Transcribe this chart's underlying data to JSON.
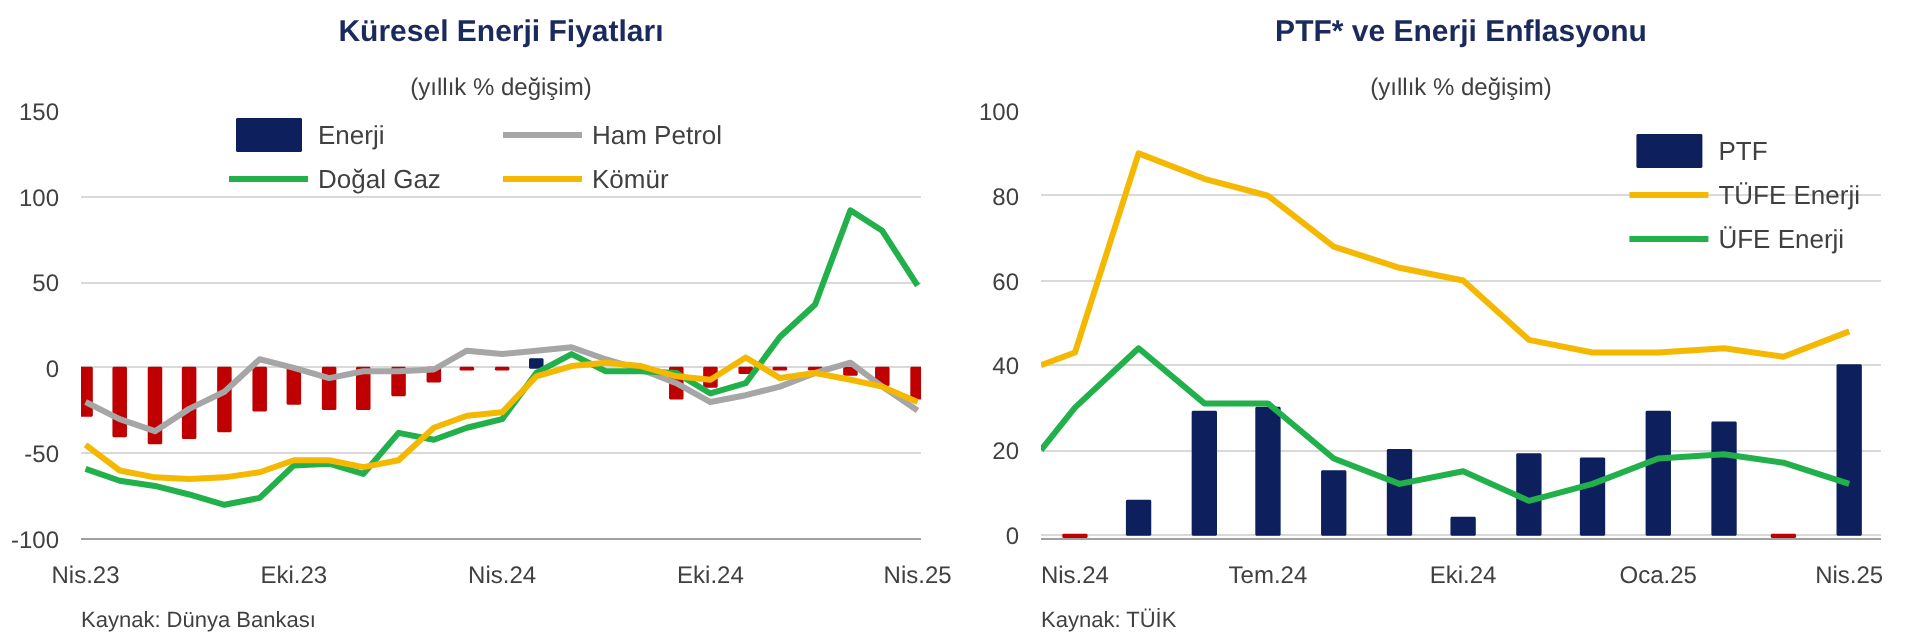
{
  "chart_data": [
    {
      "type": "line",
      "title": "Küresel Enerji Fiyatları",
      "subtitle": "(yıllık % değişim)",
      "annotations": [
        "Kaynak: Dünya Bankası"
      ],
      "x": [
        "2023-04",
        "2023-05",
        "2023-06",
        "2023-07",
        "2023-08",
        "2023-09",
        "2023-10",
        "2023-11",
        "2023-12",
        "2024-01",
        "2024-02",
        "2024-03",
        "2024-04",
        "2024-05",
        "2024-06",
        "2024-07",
        "2024-08",
        "2024-09",
        "2024-10",
        "2024-11",
        "2024-12",
        "2025-01",
        "2025-02",
        "2025-03",
        "2025-04"
      ],
      "series": [
        {
          "name": "Enerji",
          "type": "bar",
          "color": "#0d1f5c",
          "colors": [
            "#c00000",
            "#c00000",
            "#c00000",
            "#c00000",
            "#c00000",
            "#c00000",
            "#c00000",
            "#c00000",
            "#c00000",
            "#c00000",
            "#c00000",
            "#c00000",
            "#c00000",
            "#0d1f5c",
            "#0d1f5c",
            "#0d1f5c",
            "#c00000",
            "#c00000",
            "#c00000",
            "#c00000",
            "#c00000",
            "#c00000",
            "#c00000",
            "#c00000",
            "#c00000"
          ],
          "values": [
            -28,
            -40,
            -44,
            -41,
            -37,
            -25,
            -21,
            -24,
            -24,
            -16,
            -8,
            -1,
            -1,
            5,
            null,
            null,
            null,
            -18,
            -11,
            -3,
            -1,
            -1,
            -4,
            -10,
            -18
          ]
        },
        {
          "name": "Ham Petrol",
          "color": "#a6a6a6",
          "values": [
            -20,
            -30,
            -37,
            -24,
            -14,
            5,
            0,
            -6,
            -2,
            -2,
            -1,
            10,
            8,
            10,
            12,
            5,
            -1,
            -9,
            -20,
            -16,
            -11,
            -3,
            3,
            -11,
            -25
          ]
        },
        {
          "name": "Doğal Gaz",
          "color": "#22b04b",
          "values": [
            -59,
            -66,
            -69,
            -74,
            -80,
            -76,
            -57,
            -56,
            -62,
            -38,
            -42,
            -35,
            -30,
            -3,
            8,
            -2,
            -2,
            -3,
            -15,
            -9,
            18,
            37,
            92,
            80,
            48
          ]
        },
        {
          "name": "Kömür",
          "color": "#f5b800",
          "values": [
            -45,
            -60,
            -64,
            -65,
            -64,
            -61,
            -54,
            -54,
            -58,
            -54,
            -35,
            -28,
            -26,
            -5,
            1,
            3,
            1,
            -5,
            -7,
            6,
            -6,
            -3,
            -7,
            -11,
            -20
          ]
        }
      ],
      "xlim": [
        "2023-03-28",
        "2025-04-04"
      ],
      "xticks": [
        {
          "value": "2023-04",
          "label": "Nis.23"
        },
        {
          "value": "2023-10",
          "label": "Eki.23"
        },
        {
          "value": "2024-04",
          "label": "Nis.24"
        },
        {
          "value": "2024-10",
          "label": "Eki.24"
        },
        {
          "value": "2025-04",
          "label": "Nis.25"
        }
      ],
      "ylim": [
        -100,
        150
      ],
      "yticks": [
        -100,
        -50,
        0,
        50,
        100,
        150
      ],
      "grid": "y",
      "legend": "top",
      "line_style": "solid",
      "marker": "none"
    },
    {
      "type": "line",
      "title": "PTF* ve Enerji Enflasyonu",
      "subtitle": "(yıllık % değişim)",
      "annotations": [
        "Kaynak: TÜİK"
      ],
      "series": [
        {
          "name": "PTF",
          "type": "bar",
          "color": "#0d1f5c",
          "x": [
            "2024-04",
            "2024-05",
            "2024-06",
            "2024-07",
            "2024-08",
            "2024-09",
            "2024-10",
            "2024-11",
            "2024-12",
            "2025-01",
            "2025-02",
            "2025-03",
            "2025-04"
          ],
          "colors": [
            "#c00000",
            "#0d1f5c",
            "#0d1f5c",
            "#0d1f5c",
            "#0d1f5c",
            "#0d1f5c",
            "#0d1f5c",
            "#0d1f5c",
            "#0d1f5c",
            "#0d1f5c",
            "#0d1f5c",
            "#c00000",
            "#0d1f5c"
          ],
          "values": [
            -0.5,
            8,
            29,
            30,
            15,
            20,
            4,
            19,
            18,
            29,
            26.5,
            -0.5,
            40
          ]
        },
        {
          "name": "TÜFE Enerji",
          "color": "#f5b800",
          "x": [
            "2024-03-16",
            "2024-04",
            "2024-05",
            "2024-06",
            "2024-07",
            "2024-08",
            "2024-09",
            "2024-10",
            "2024-11",
            "2024-12",
            "2025-01",
            "2025-02",
            "2025-03",
            "2025-04"
          ],
          "values": [
            40,
            43,
            90,
            84,
            80,
            68,
            63,
            60,
            46,
            43,
            43,
            44,
            42,
            48
          ]
        },
        {
          "name": "ÜFE Enerji",
          "color": "#22b04b",
          "x": [
            "2024-03-16",
            "2024-04",
            "2024-05",
            "2024-06",
            "2024-07",
            "2024-08",
            "2024-09",
            "2024-10",
            "2024-11",
            "2024-12",
            "2025-01",
            "2025-02",
            "2025-03",
            "2025-04"
          ],
          "values": [
            20,
            30,
            44,
            31,
            31,
            18,
            12,
            15,
            8,
            12,
            18,
            19,
            17,
            12
          ]
        }
      ],
      "xlim": [
        "2024-03-16",
        "2025-04-16"
      ],
      "xticks": [
        {
          "value": "2024-04",
          "label": "Nis.24"
        },
        {
          "value": "2024-07",
          "label": "Tem.24"
        },
        {
          "value": "2024-10",
          "label": "Eki.24"
        },
        {
          "value": "2025-01",
          "label": "Oca.25"
        },
        {
          "value": "2025-04",
          "label": "Nis.25"
        }
      ],
      "ylim": [
        -1,
        100
      ],
      "yticks": [
        0,
        20,
        40,
        60,
        80,
        100
      ],
      "grid": "y",
      "legend": "top right",
      "line_style": "solid",
      "marker": "none"
    }
  ]
}
